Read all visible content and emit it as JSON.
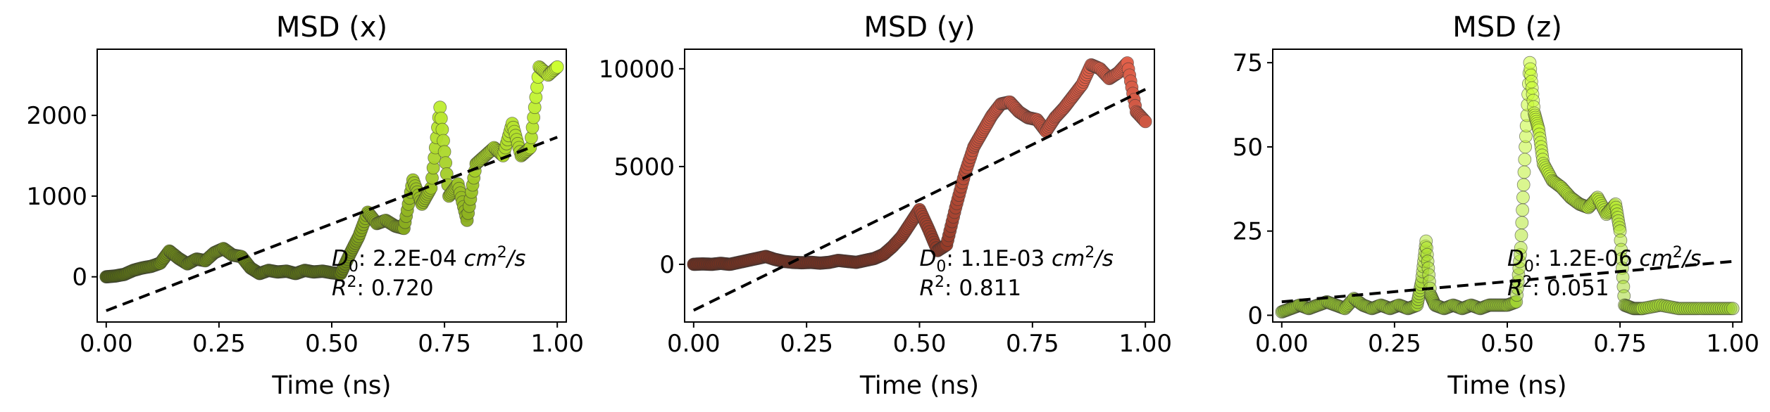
{
  "chart_data": [
    {
      "type": "scatter",
      "title": "MSD (x)",
      "xlabel": "Time (ns)",
      "ylabel": "",
      "xlim": [
        -0.02,
        1.02
      ],
      "ylim": [
        -560,
        2820
      ],
      "xticks": [
        0.0,
        0.25,
        0.5,
        0.75,
        1.0
      ],
      "xtick_labels": [
        "0.00",
        "0.25",
        "0.50",
        "0.75",
        "1.00"
      ],
      "yticks": [
        0,
        1000,
        2000
      ],
      "ytick_labels": [
        "0",
        "1000",
        "2000"
      ],
      "grid": false,
      "colors": {
        "low": "#556b10",
        "high": "#ccff33",
        "fit": "#000000"
      },
      "x": [
        0.0,
        0.02,
        0.04,
        0.06,
        0.08,
        0.1,
        0.12,
        0.14,
        0.16,
        0.18,
        0.2,
        0.22,
        0.24,
        0.26,
        0.28,
        0.3,
        0.32,
        0.34,
        0.36,
        0.38,
        0.4,
        0.42,
        0.44,
        0.46,
        0.48,
        0.5,
        0.52,
        0.54,
        0.56,
        0.58,
        0.6,
        0.62,
        0.64,
        0.66,
        0.68,
        0.7,
        0.72,
        0.74,
        0.76,
        0.78,
        0.8,
        0.82,
        0.84,
        0.86,
        0.88,
        0.9,
        0.92,
        0.94,
        0.96,
        0.98,
        1.0
      ],
      "values": [
        0,
        10,
        30,
        80,
        110,
        130,
        170,
        320,
        230,
        160,
        220,
        200,
        300,
        350,
        270,
        250,
        110,
        40,
        80,
        60,
        70,
        40,
        80,
        60,
        70,
        50,
        40,
        280,
        500,
        800,
        660,
        700,
        630,
        600,
        1200,
        900,
        1100,
        2100,
        1000,
        1150,
        700,
        1400,
        1500,
        1600,
        1500,
        1900,
        1500,
        1600,
        2600,
        2500,
        2600
      ],
      "fit": {
        "x": [
          0.0,
          1.0
        ],
        "y": [
          -420,
          1730
        ]
      },
      "annotations": {
        "d0_label": "D",
        "d0_sub": "0",
        "d0_value": ": 2.2E-04 ",
        "d0_unit": "cm",
        "d0_unit_exp": "2",
        "d0_unit_tail": "/s",
        "r2_label": "R",
        "r2_exp": "2",
        "r2_value": ": 0.720"
      }
    },
    {
      "type": "scatter",
      "title": "MSD (y)",
      "xlabel": "Time (ns)",
      "ylabel": "",
      "xlim": [
        -0.02,
        1.02
      ],
      "ylim": [
        -2950,
        11000
      ],
      "xticks": [
        0.0,
        0.25,
        0.5,
        0.75,
        1.0
      ],
      "xtick_labels": [
        "0.00",
        "0.25",
        "0.50",
        "0.75",
        "1.00"
      ],
      "yticks": [
        0,
        5000,
        10000
      ],
      "ytick_labels": [
        "0",
        "5000",
        "10000"
      ],
      "grid": false,
      "colors": {
        "low": "#7a2f1d",
        "high": "#e0604a",
        "fit": "#000000"
      },
      "x": [
        0.0,
        0.02,
        0.04,
        0.06,
        0.08,
        0.1,
        0.12,
        0.14,
        0.16,
        0.18,
        0.2,
        0.22,
        0.24,
        0.26,
        0.28,
        0.3,
        0.32,
        0.34,
        0.36,
        0.38,
        0.4,
        0.42,
        0.44,
        0.46,
        0.48,
        0.5,
        0.52,
        0.54,
        0.56,
        0.58,
        0.6,
        0.62,
        0.64,
        0.66,
        0.68,
        0.7,
        0.72,
        0.74,
        0.76,
        0.78,
        0.8,
        0.82,
        0.84,
        0.86,
        0.88,
        0.9,
        0.92,
        0.94,
        0.96,
        0.98,
        1.0
      ],
      "values": [
        0,
        20,
        0,
        50,
        0,
        100,
        200,
        300,
        400,
        250,
        150,
        100,
        80,
        100,
        60,
        100,
        200,
        150,
        100,
        200,
        300,
        500,
        900,
        1400,
        2100,
        2800,
        1800,
        700,
        1000,
        2900,
        4600,
        6000,
        6800,
        7600,
        8200,
        8300,
        7800,
        7500,
        7400,
        6800,
        7500,
        8000,
        8600,
        9200,
        10200,
        10000,
        9500,
        9800,
        10300,
        7800,
        7300
      ],
      "fit": {
        "x": [
          0.0,
          1.0
        ],
        "y": [
          -2350,
          8950
        ]
      },
      "annotations": {
        "d0_label": "D",
        "d0_sub": "0",
        "d0_value": ": 1.1E-03 ",
        "d0_unit": "cm",
        "d0_unit_exp": "2",
        "d0_unit_tail": "/s",
        "r2_label": "R",
        "r2_exp": "2",
        "r2_value": ": 0.811"
      }
    },
    {
      "type": "scatter",
      "title": "MSD (z)",
      "xlabel": "Time (ns)",
      "ylabel": "",
      "xlim": [
        -0.02,
        1.02
      ],
      "ylim": [
        -2,
        79
      ],
      "xticks": [
        0.0,
        0.25,
        0.5,
        0.75,
        1.0
      ],
      "xtick_labels": [
        "0.00",
        "0.25",
        "0.50",
        "0.75",
        "1.00"
      ],
      "yticks": [
        0,
        25,
        50,
        75
      ],
      "ytick_labels": [
        "0",
        "25",
        "50",
        "75"
      ],
      "grid": false,
      "colors": {
        "low": "#9acd32",
        "high": "#ccff33",
        "fit": "#000000"
      },
      "x": [
        0.0,
        0.02,
        0.04,
        0.06,
        0.08,
        0.1,
        0.12,
        0.14,
        0.16,
        0.18,
        0.2,
        0.22,
        0.24,
        0.26,
        0.28,
        0.3,
        0.31,
        0.32,
        0.33,
        0.34,
        0.36,
        0.38,
        0.4,
        0.42,
        0.44,
        0.46,
        0.48,
        0.5,
        0.52,
        0.53,
        0.54,
        0.55,
        0.56,
        0.57,
        0.58,
        0.6,
        0.62,
        0.64,
        0.66,
        0.68,
        0.7,
        0.72,
        0.74,
        0.75,
        0.76,
        0.78,
        0.8,
        0.84,
        0.88,
        0.92,
        0.96,
        1.0
      ],
      "values": [
        1,
        2,
        3,
        2,
        3,
        4,
        3,
        2,
        5,
        3,
        2,
        3,
        2,
        3,
        2,
        3,
        10,
        22,
        6,
        3,
        2,
        3,
        2,
        3,
        2,
        3,
        3,
        3,
        4,
        20,
        50,
        75,
        60,
        55,
        45,
        40,
        38,
        35,
        33,
        32,
        35,
        30,
        33,
        25,
        3,
        2,
        2,
        3,
        2,
        2,
        2,
        2
      ],
      "fit": {
        "x": [
          0.0,
          1.0
        ],
        "y": [
          4,
          16
        ]
      },
      "annotations": {
        "d0_label": "D",
        "d0_sub": "0",
        "d0_value": ": 1.2E-06 ",
        "d0_unit": "cm",
        "d0_unit_exp": "2",
        "d0_unit_tail": "/s",
        "r2_label": "R",
        "r2_exp": "2",
        "r2_value": ": 0.051"
      }
    }
  ]
}
